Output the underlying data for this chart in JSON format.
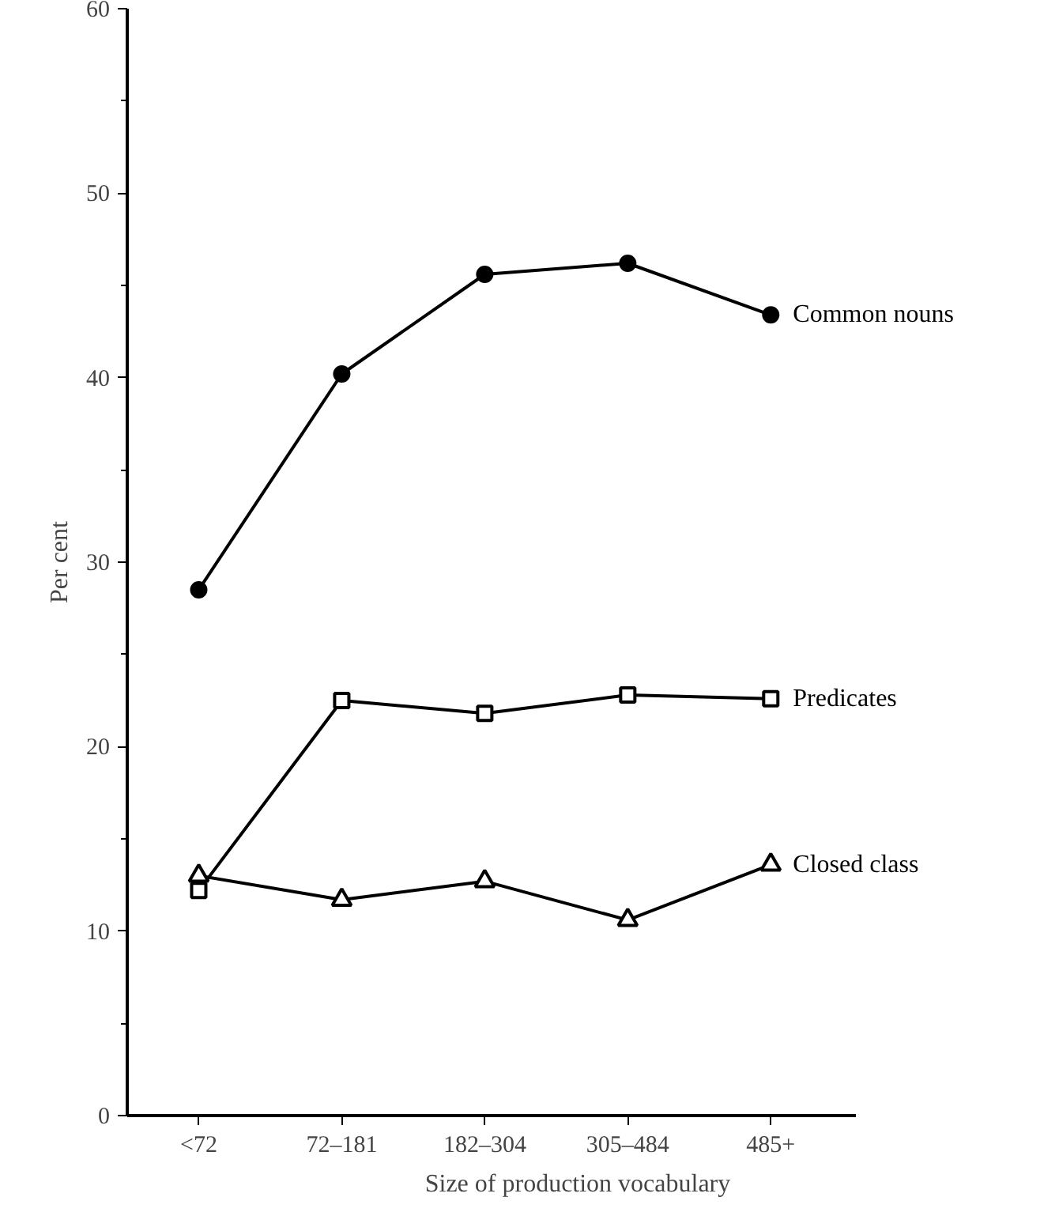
{
  "chart_data": {
    "type": "line",
    "xlabel": "Size of production vocabulary",
    "ylabel": "Per cent",
    "categories": [
      "<72",
      "72–181",
      "182–304",
      "305–484",
      "485+"
    ],
    "ylim": [
      0,
      60
    ],
    "yticks": [
      0,
      {
        "value": 5,
        "label": null
      },
      10,
      {
        "value": 15,
        "label": null
      },
      20,
      {
        "value": 25,
        "label": null
      },
      30,
      {
        "value": 35,
        "label": null
      },
      40,
      {
        "value": 45,
        "label": null
      },
      50,
      {
        "value": 55,
        "label": null
      },
      60
    ],
    "grid": false,
    "line_style": "solid",
    "series": [
      {
        "name": "Common nouns",
        "color": "#000000",
        "marker": "circle",
        "values": [
          28.5,
          40.2,
          45.6,
          46.2,
          43.4
        ]
      },
      {
        "name": "Predicates",
        "color": "#000000",
        "marker": "square",
        "values": [
          12.2,
          22.5,
          21.8,
          22.8,
          22.6
        ]
      },
      {
        "name": "Closed class",
        "color": "#000000",
        "marker": "triangle",
        "values": [
          13.0,
          11.7,
          12.7,
          10.6,
          13.6
        ]
      }
    ]
  }
}
